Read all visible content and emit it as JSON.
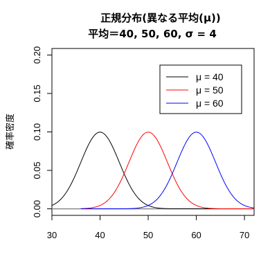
{
  "chart_data": {
    "type": "line",
    "title": "正規分布(異なる平均(μ))",
    "subtitle": "平均＝40, 50, 60, σ = 4",
    "xlabel": "",
    "ylabel": "確率密度",
    "xlim": [
      30,
      72
    ],
    "ylim": [
      0,
      0.2
    ],
    "x_ticks": [
      30,
      40,
      50,
      60,
      70
    ],
    "y_ticks": [
      0.0,
      0.05,
      0.1,
      0.15,
      0.2
    ],
    "y_tick_labels": [
      "0.00",
      "0.05",
      "0.10",
      "0.15",
      "0.20"
    ],
    "grid": false,
    "legend_position": "top-right",
    "series": [
      {
        "name": "μ = 40",
        "mean": 40,
        "sd": 4,
        "x_start": 30,
        "x_end": 72,
        "color": "#000000"
      },
      {
        "name": "μ = 50",
        "mean": 50,
        "sd": 4,
        "x_start": 36,
        "x_end": 72,
        "color": "#ff0000"
      },
      {
        "name": "μ = 60",
        "mean": 60,
        "sd": 4,
        "x_start": 36,
        "x_end": 72,
        "color": "#0000ff"
      }
    ],
    "baseline": {
      "y": 0,
      "color": "#808080"
    }
  }
}
